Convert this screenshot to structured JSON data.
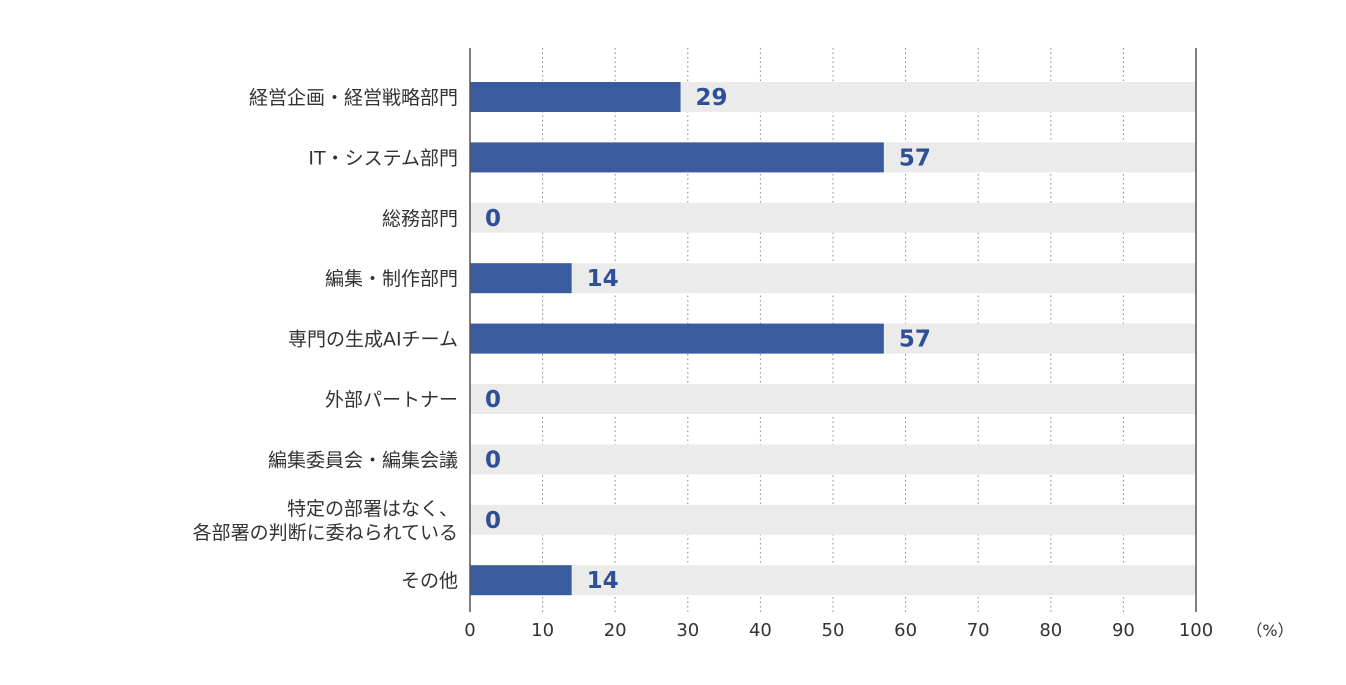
{
  "chart_data": {
    "type": "bar",
    "orientation": "horizontal",
    "categories": [
      [
        "経営企画・経営戦略部門"
      ],
      [
        "IT・システム部門"
      ],
      [
        "総務部門"
      ],
      [
        "編集・制作部門"
      ],
      [
        "専門の生成AIチーム"
      ],
      [
        "外部パートナー"
      ],
      [
        "編集委員会・編集会議"
      ],
      [
        "特定の部署はなく、",
        "各部署の判断に委ねられている"
      ],
      [
        "その他"
      ]
    ],
    "values": [
      29,
      57,
      0,
      14,
      57,
      0,
      0,
      0,
      14
    ],
    "value_labels": [
      "29",
      "57",
      "0",
      "14",
      "57",
      "0",
      "0",
      "0",
      "14"
    ],
    "xlim": [
      0,
      100
    ],
    "xticks": [
      0,
      10,
      20,
      30,
      40,
      50,
      60,
      70,
      80,
      90,
      100
    ],
    "unit_label": "（%）",
    "grid": "vertical dotted",
    "colors": {
      "bar": "#3a5ba0",
      "track": "#ebebeb",
      "value_text": "#2f4f96",
      "grid": "#888888",
      "axis": "#555555"
    }
  }
}
